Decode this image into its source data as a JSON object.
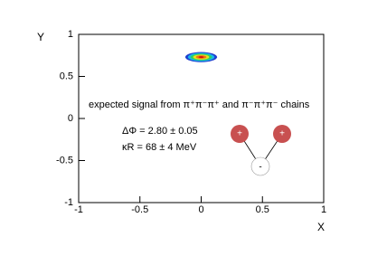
{
  "chart_data": {
    "type": "contour",
    "xlabel": "X",
    "ylabel": "Y",
    "xlim": [
      -1,
      1
    ],
    "ylim": [
      -1,
      1
    ],
    "xticks": [
      -1,
      -0.5,
      0,
      0.5,
      1
    ],
    "yticks": [
      -1,
      -0.5,
      0,
      0.5,
      1
    ],
    "peak": {
      "x": 0,
      "y": 0.73,
      "sx": 0.13,
      "sy": 0.06
    },
    "colors": [
      "#1f3fd0",
      "#18b8e8",
      "#30d060",
      "#e8e020",
      "#f07010",
      "#d01010"
    ],
    "annotations": [
      "expected signal from π⁺π⁻π⁺ and π⁻π⁺π⁻ chains",
      "ΔΦ = 2.80 ± 0.05",
      "κR = 68 ± 4 MeV"
    ],
    "diagram_labels": [
      "+",
      "+",
      "-"
    ]
  }
}
